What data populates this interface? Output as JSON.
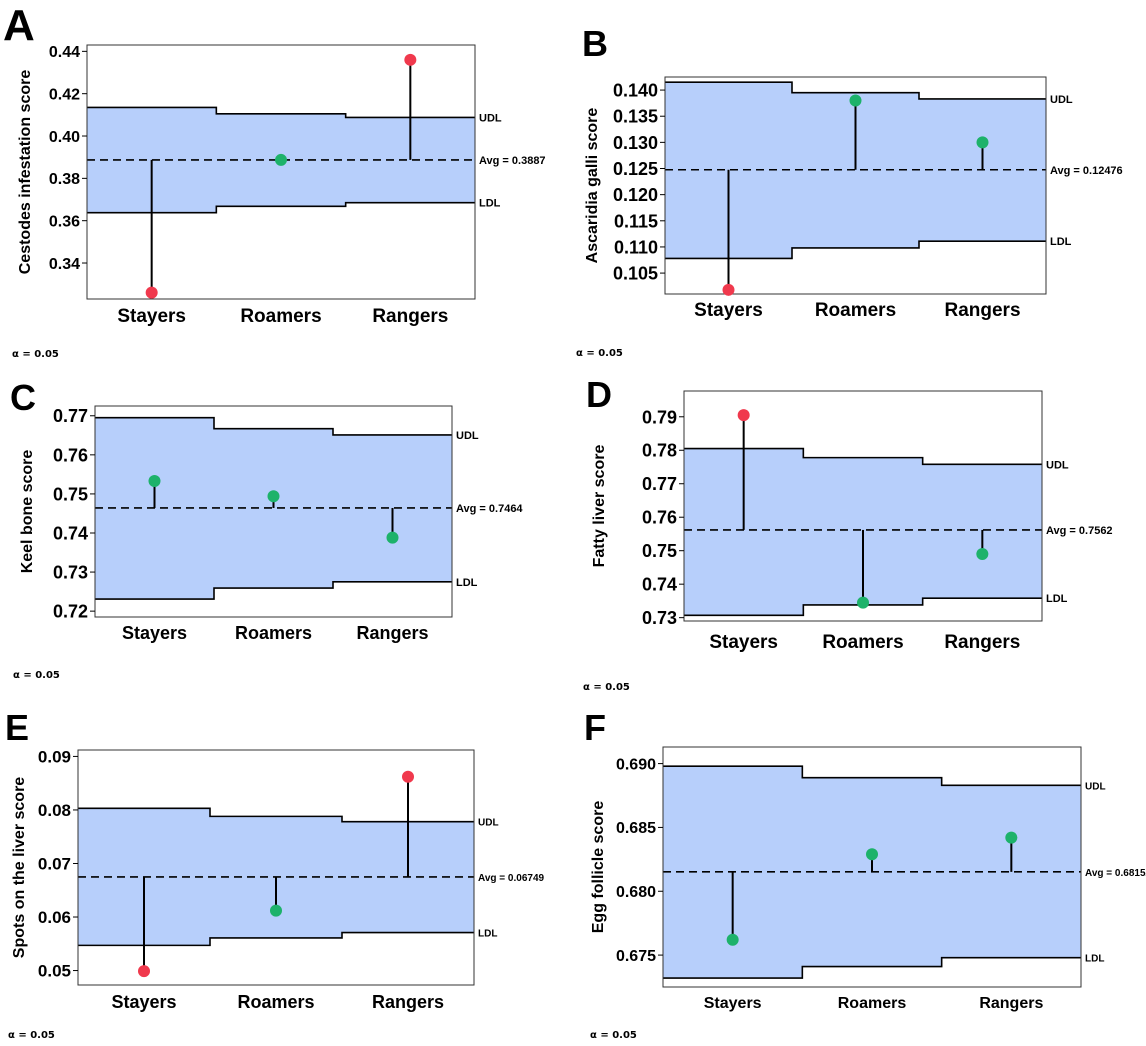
{
  "colors": {
    "band": "#b7cffb",
    "significant": "#f0394d",
    "nonsignificant": "#1db26a",
    "line": "#000000"
  },
  "chart_data": [
    {
      "panel": "A",
      "type": "scatter",
      "ylabel": "Cestodes infestation score",
      "categories": [
        "Stayers",
        "Roamers",
        "Rangers"
      ],
      "values": [
        0.326,
        0.3887,
        0.436
      ],
      "point_status": [
        "significant",
        "nonsignificant",
        "significant"
      ],
      "udl": [
        0.4135,
        0.4105,
        0.4088
      ],
      "ldl": [
        0.3638,
        0.3668,
        0.3685
      ],
      "avg": 0.3887,
      "avg_label": "Avg = 0.3887",
      "udl_label": "UDL",
      "ldl_label": "LDL",
      "yticks": [
        "0.34",
        "0.36",
        "0.38",
        "0.40",
        "0.42",
        "0.44"
      ],
      "ylim": [
        0.323,
        0.443
      ],
      "alpha_label": "α = 0.05"
    },
    {
      "panel": "B",
      "type": "scatter",
      "ylabel": "Ascaridia galli score",
      "categories": [
        "Stayers",
        "Roamers",
        "Rangers"
      ],
      "values": [
        0.1018,
        0.138,
        0.13
      ],
      "point_status": [
        "significant",
        "nonsignificant",
        "nonsignificant"
      ],
      "udl": [
        0.1415,
        0.1395,
        0.1383
      ],
      "ldl": [
        0.1078,
        0.1098,
        0.1111
      ],
      "avg": 0.12476,
      "avg_label": "Avg = 0.12476",
      "udl_label": "UDL",
      "ldl_label": "LDL",
      "yticks": [
        "0.105",
        "0.110",
        "0.115",
        "0.120",
        "0.125",
        "0.130",
        "0.135",
        "0.140"
      ],
      "ylim": [
        0.101,
        0.1425
      ],
      "alpha_label": "α = 0.05"
    },
    {
      "panel": "C",
      "type": "scatter",
      "ylabel": "Keel bone score",
      "categories": [
        "Stayers",
        "Roamers",
        "Rangers"
      ],
      "values": [
        0.7533,
        0.7494,
        0.7388
      ],
      "point_status": [
        "nonsignificant",
        "nonsignificant",
        "nonsignificant"
      ],
      "udl": [
        0.7695,
        0.7667,
        0.7651
      ],
      "ldl": [
        0.7231,
        0.7259,
        0.7275
      ],
      "avg": 0.7464,
      "avg_label": "Avg = 0.7464",
      "udl_label": "UDL",
      "ldl_label": "LDL",
      "yticks": [
        "0.72",
        "0.73",
        "0.74",
        "0.75",
        "0.76",
        "0.77"
      ],
      "ylim": [
        0.7185,
        0.7725
      ],
      "alpha_label": "α = 0.05"
    },
    {
      "panel": "D",
      "type": "scatter",
      "ylabel": "Fatty liver score",
      "categories": [
        "Stayers",
        "Roamers",
        "Rangers"
      ],
      "values": [
        0.7905,
        0.7345,
        0.749
      ],
      "point_status": [
        "significant",
        "nonsignificant",
        "nonsignificant"
      ],
      "udl": [
        0.7805,
        0.7778,
        0.7758
      ],
      "ldl": [
        0.7307,
        0.7338,
        0.7358
      ],
      "avg": 0.7562,
      "avg_label": "Avg = 0.7562",
      "udl_label": "UDL",
      "ldl_label": "LDL",
      "yticks": [
        "0.73",
        "0.74",
        "0.75",
        "0.76",
        "0.77",
        "0.78",
        "0.79"
      ],
      "ylim": [
        0.729,
        0.7977
      ],
      "alpha_label": "α = 0.05"
    },
    {
      "panel": "E",
      "type": "scatter",
      "ylabel": "Spots on the liver score",
      "categories": [
        "Stayers",
        "Roamers",
        "Rangers"
      ],
      "values": [
        0.0499,
        0.0612,
        0.0862
      ],
      "point_status": [
        "significant",
        "nonsignificant",
        "significant"
      ],
      "udl": [
        0.0803,
        0.0788,
        0.0778
      ],
      "ldl": [
        0.0547,
        0.0561,
        0.0571
      ],
      "avg": 0.06749,
      "avg_label": "Avg = 0.06749",
      "udl_label": "UDL",
      "ldl_label": "LDL",
      "yticks": [
        "0.05",
        "0.06",
        "0.07",
        "0.08",
        "0.09"
      ],
      "ylim": [
        0.0473,
        0.0912
      ],
      "alpha_label": "α = 0.05"
    },
    {
      "panel": "F",
      "type": "scatter",
      "ylabel": "Egg follicle score",
      "categories": [
        "Stayers",
        "Roamers",
        "Rangers"
      ],
      "values": [
        0.6762,
        0.6829,
        0.6842
      ],
      "point_status": [
        "nonsignificant",
        "nonsignificant",
        "nonsignificant"
      ],
      "udl": [
        0.6898,
        0.6889,
        0.6883
      ],
      "ldl": [
        0.6732,
        0.6741,
        0.6748
      ],
      "avg": 0.68152,
      "avg_label": "Avg = 0.68152",
      "udl_label": "UDL",
      "ldl_label": "LDL",
      "yticks": [
        "0.675",
        "0.680",
        "0.685",
        "0.690"
      ],
      "ylim": [
        0.6725,
        0.6913
      ],
      "alpha_label": "α = 0.05"
    }
  ]
}
